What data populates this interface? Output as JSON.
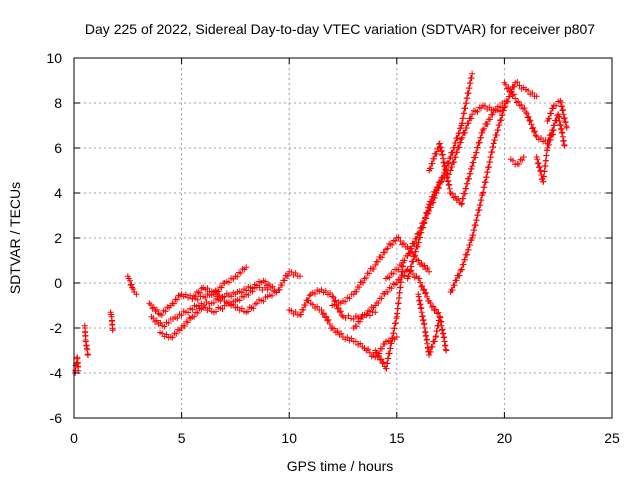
{
  "chart_data": {
    "type": "scatter",
    "title": "Day 225 of 2022, Sidereal Day-to-day VTEC variation (SDTVAR) for receiver p807",
    "xlabel": "GPS time / hours",
    "ylabel": "SDTVAR / TECUs",
    "xlim": [
      0,
      25
    ],
    "ylim": [
      -6,
      10
    ],
    "xticks": [
      "0",
      "5",
      "10",
      "15",
      "20",
      "25"
    ],
    "yticks": [
      "-6",
      "-4",
      "-2",
      "0",
      "2",
      "4",
      "6",
      "8",
      "10"
    ],
    "grid": true,
    "marker": "+",
    "series_color": "#ff0000",
    "series": [
      {
        "name": "s1",
        "x": [
          0.05,
          0.1,
          0.15,
          0.2
        ],
        "y": [
          -4.0,
          -3.6,
          -3.3,
          -3.9
        ]
      },
      {
        "name": "s2",
        "x": [
          0.5,
          0.55,
          0.6,
          0.65
        ],
        "y": [
          -1.9,
          -2.6,
          -2.9,
          -3.2
        ]
      },
      {
        "name": "s3",
        "x": [
          1.7,
          1.75,
          1.8
        ],
        "y": [
          -1.3,
          -1.5,
          -2.1
        ]
      },
      {
        "name": "s4",
        "x": [
          2.5,
          2.6,
          2.7,
          2.8,
          2.9
        ],
        "y": [
          0.3,
          0.1,
          -0.2,
          -0.4,
          -0.5
        ]
      },
      {
        "name": "s5",
        "x": [
          3.5,
          4.0,
          4.5,
          5.0,
          5.5,
          6.0,
          6.5,
          7.0,
          7.5,
          8.0
        ],
        "y": [
          -0.9,
          -1.4,
          -1.0,
          -0.5,
          -0.7,
          -0.2,
          -0.5,
          0.0,
          0.3,
          0.7
        ]
      },
      {
        "name": "s6",
        "x": [
          3.6,
          4.1,
          4.6,
          5.2,
          5.8,
          6.4,
          7.0,
          7.6,
          8.2,
          8.8,
          9.4
        ],
        "y": [
          -1.5,
          -1.9,
          -1.6,
          -1.3,
          -1.0,
          -0.9,
          -0.6,
          -0.4,
          -0.2,
          0.1,
          -0.4
        ]
      },
      {
        "name": "s7",
        "x": [
          4.0,
          4.5,
          5.0,
          5.5,
          6.0,
          6.5,
          7.0,
          7.5,
          8.0,
          8.5,
          9.0
        ],
        "y": [
          -2.2,
          -2.4,
          -2.0,
          -1.5,
          -1.1,
          -1.3,
          -1.0,
          -0.8,
          -0.5,
          -0.2,
          -0.3
        ]
      },
      {
        "name": "s8",
        "x": [
          5.5,
          6.0,
          6.5,
          7.0,
          7.5,
          8.0,
          8.5,
          9.0,
          9.5,
          10.0,
          10.5
        ],
        "y": [
          -0.7,
          -0.6,
          -0.4,
          -0.8,
          -1.1,
          -1.3,
          -0.9,
          -0.6,
          -0.3,
          0.5,
          0.3
        ]
      },
      {
        "name": "s9",
        "x": [
          10.0,
          10.5,
          11.0,
          11.5,
          12.0,
          12.5,
          13.0,
          13.5,
          14.0
        ],
        "y": [
          -1.2,
          -1.4,
          -0.5,
          -0.3,
          -0.6,
          -1.5,
          -1.6,
          -1.4,
          -1.3
        ]
      },
      {
        "name": "s10",
        "x": [
          11.0,
          11.5,
          12.0,
          12.5,
          13.0,
          13.5,
          14.0,
          14.5,
          15.0
        ],
        "y": [
          -0.9,
          -1.2,
          -2.0,
          -2.4,
          -2.6,
          -2.9,
          -3.3,
          -2.6,
          -2.4
        ]
      },
      {
        "name": "s11",
        "x": [
          12.0,
          12.5,
          13.0,
          13.5,
          14.0,
          14.5,
          15.0,
          15.5,
          16.0,
          16.5
        ],
        "y": [
          -1.0,
          -0.8,
          -0.5,
          0.2,
          0.8,
          1.5,
          2.0,
          1.6,
          1.0,
          0.5
        ]
      },
      {
        "name": "s12",
        "x": [
          13.0,
          13.5,
          14.0,
          14.5,
          15.0,
          15.5,
          16.0,
          16.5,
          17.0
        ],
        "y": [
          -2.0,
          -1.4,
          -1.0,
          -0.4,
          0.0,
          0.6,
          0.2,
          -0.8,
          -1.5
        ]
      },
      {
        "name": "s13",
        "x": [
          14.0,
          14.5,
          15.0,
          15.3
        ],
        "y": [
          -3.0,
          -3.8,
          -1.5,
          0.9
        ]
      },
      {
        "name": "s14",
        "x": [
          14.5,
          15.0,
          15.5,
          16.0,
          16.5,
          17.0,
          17.5,
          18.0,
          18.5
        ],
        "y": [
          0.2,
          0.6,
          1.2,
          2.2,
          3.2,
          4.4,
          5.6,
          7.0,
          9.3
        ]
      },
      {
        "name": "s15",
        "x": [
          15.5,
          16.0,
          16.5,
          17.0,
          17.5,
          18.0,
          18.5,
          19.0,
          19.5,
          20.0
        ],
        "y": [
          0.2,
          1.8,
          3.5,
          4.5,
          5.0,
          6.4,
          7.5,
          7.9,
          7.7,
          8.0
        ]
      },
      {
        "name": "s16",
        "x": [
          16.0,
          16.3,
          16.5,
          16.8,
          17.0,
          17.3
        ],
        "y": [
          -0.5,
          -2.0,
          -3.2,
          -2.4,
          -1.5,
          -3.0
        ]
      },
      {
        "name": "s17",
        "x": [
          16.5,
          17.0,
          17.5,
          18.0,
          18.5,
          19.0,
          19.5,
          20.0
        ],
        "y": [
          5.0,
          6.2,
          4.0,
          3.5,
          5.2,
          6.8,
          7.6,
          7.8
        ]
      },
      {
        "name": "s18",
        "x": [
          17.5,
          18.0,
          18.5,
          19.0,
          19.5,
          20.0,
          20.5,
          21.0,
          21.5
        ],
        "y": [
          -0.4,
          0.6,
          2.0,
          4.0,
          6.2,
          7.8,
          8.9,
          8.6,
          8.3
        ]
      },
      {
        "name": "s19",
        "x": [
          20.0,
          20.5,
          21.0,
          21.5,
          22.0,
          22.5,
          22.8
        ],
        "y": [
          8.9,
          8.2,
          7.6,
          6.5,
          6.2,
          7.5,
          6.1
        ]
      },
      {
        "name": "s20",
        "x": [
          20.3,
          20.6,
          20.9
        ],
        "y": [
          5.5,
          5.3,
          5.6
        ]
      },
      {
        "name": "s21",
        "x": [
          21.5,
          21.8,
          22.0,
          22.3
        ],
        "y": [
          5.6,
          4.5,
          6.0,
          6.8
        ]
      },
      {
        "name": "s22",
        "x": [
          22.0,
          22.3,
          22.6,
          22.9
        ],
        "y": [
          7.2,
          7.9,
          8.1,
          6.9
        ]
      }
    ]
  }
}
